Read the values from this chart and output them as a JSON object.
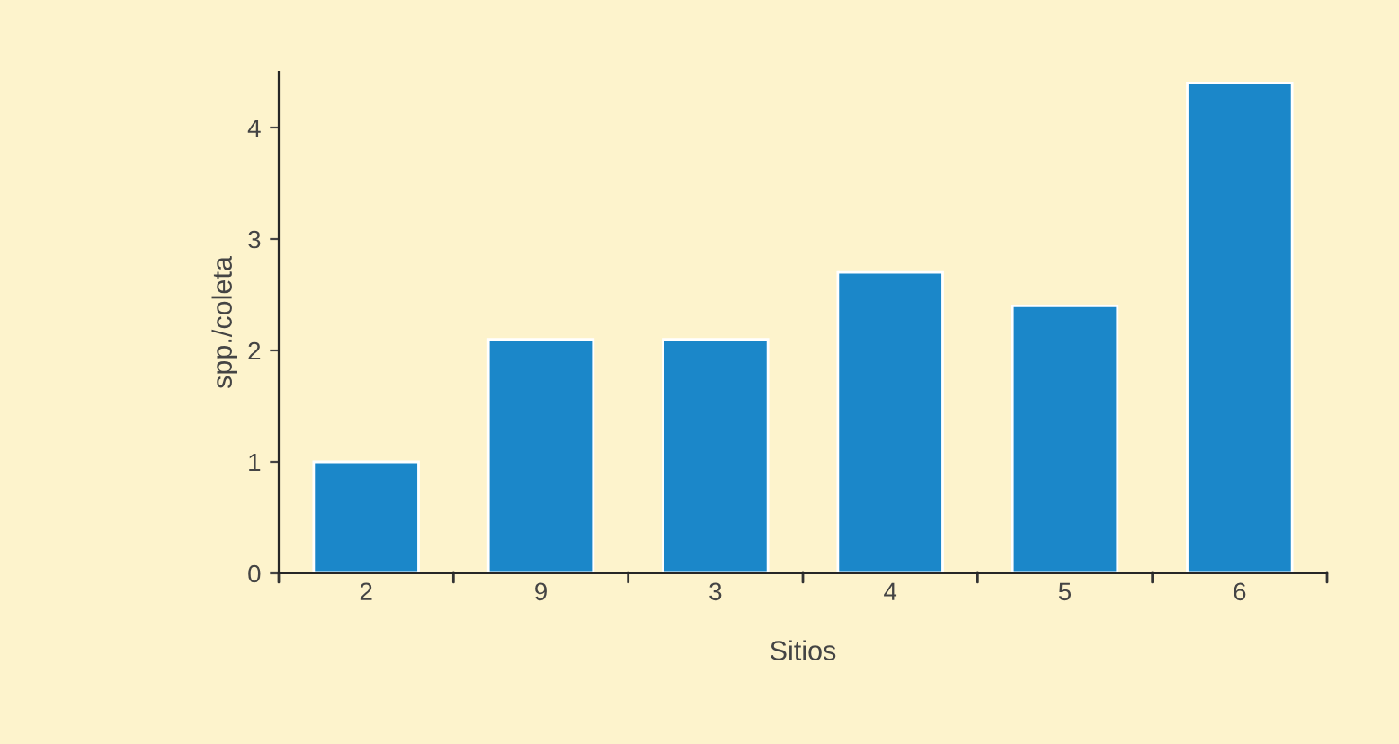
{
  "chart_data": {
    "type": "bar",
    "xlabel": "Sitios",
    "ylabel": "spp./coleta",
    "categories": [
      "2",
      "9",
      "3",
      "4",
      "5",
      "6"
    ],
    "values": [
      1.0,
      2.1,
      2.1,
      2.7,
      2.4,
      4.4
    ],
    "color": "#1b87c9",
    "ylim": [
      0,
      4.5
    ],
    "yticks": [
      0,
      1,
      2,
      3,
      4
    ],
    "grid": false
  }
}
